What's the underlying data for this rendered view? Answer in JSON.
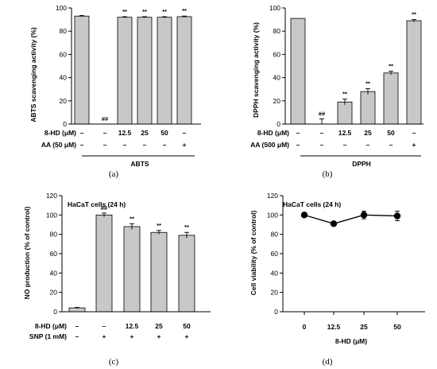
{
  "chart_data": [
    {
      "type": "bar",
      "panel_label": "(a)",
      "ylabel": "ABTS scavenging activity (%)",
      "ylim": [
        0,
        100
      ],
      "yticks": [
        0,
        20,
        40,
        60,
        80,
        100
      ],
      "values": [
        93,
        0,
        92,
        92,
        92,
        92.5
      ],
      "errors": [
        0.5,
        0,
        0.5,
        0.5,
        0.5,
        0.5
      ],
      "significance": [
        "",
        "##",
        "**",
        "**",
        "**",
        "**"
      ],
      "rows": [
        {
          "label": "8-HD (μM)",
          "cells": [
            "–",
            "–",
            "12.5",
            "25",
            "50",
            "–"
          ]
        },
        {
          "label": "AA (50 μM)",
          "cells": [
            "–",
            "–",
            "–",
            "–",
            "–",
            "+"
          ]
        }
      ],
      "group_label": "ABTS"
    },
    {
      "type": "bar",
      "panel_label": "(b)",
      "ylabel": "DPPH scavenging activity (%)",
      "ylim": [
        0,
        100
      ],
      "yticks": [
        0,
        20,
        40,
        60,
        80,
        100
      ],
      "values": [
        91,
        0.5,
        19,
        28,
        44,
        89
      ],
      "errors": [
        0,
        4,
        2.5,
        2.5,
        1.5,
        1
      ],
      "significance": [
        "",
        "##",
        "**",
        "**",
        "**",
        "**"
      ],
      "rows": [
        {
          "label": "8-HD (μM)",
          "cells": [
            "–",
            "–",
            "12.5",
            "25",
            "50",
            "–"
          ]
        },
        {
          "label": "AA (500 μM)",
          "cells": [
            "–",
            "–",
            "–",
            "–",
            "–",
            "+"
          ]
        }
      ],
      "group_label": "DPPH"
    },
    {
      "type": "bar",
      "panel_label": "(c)",
      "title": "HaCaT cells (24 h)",
      "ylabel": "NO production (% of control)",
      "ylim": [
        0,
        120
      ],
      "yticks": [
        0,
        20,
        40,
        60,
        80,
        100,
        120
      ],
      "values": [
        4,
        100,
        88,
        82,
        79
      ],
      "errors": [
        0.5,
        2,
        3,
        2,
        3
      ],
      "significance": [
        "",
        "##",
        "**",
        "**",
        "**"
      ],
      "rows": [
        {
          "label": "8-HD (μM)",
          "cells": [
            "–",
            "–",
            "12.5",
            "25",
            "50"
          ]
        },
        {
          "label": "SNP (1 mM)",
          "cells": [
            "–",
            "+",
            "+",
            "+",
            "+"
          ]
        }
      ]
    },
    {
      "type": "line",
      "panel_label": "(d)",
      "title": "HaCaT cells (24 h)",
      "ylabel": "Cell viability (% of control)",
      "xlabel": "8-HD (μM)",
      "ylim": [
        0,
        120
      ],
      "yticks": [
        0,
        20,
        40,
        60,
        80,
        100,
        120
      ],
      "x": [
        "0",
        "12.5",
        "25",
        "50"
      ],
      "y": [
        100,
        91,
        100,
        99
      ],
      "errors": [
        0,
        1,
        4,
        5
      ]
    }
  ]
}
